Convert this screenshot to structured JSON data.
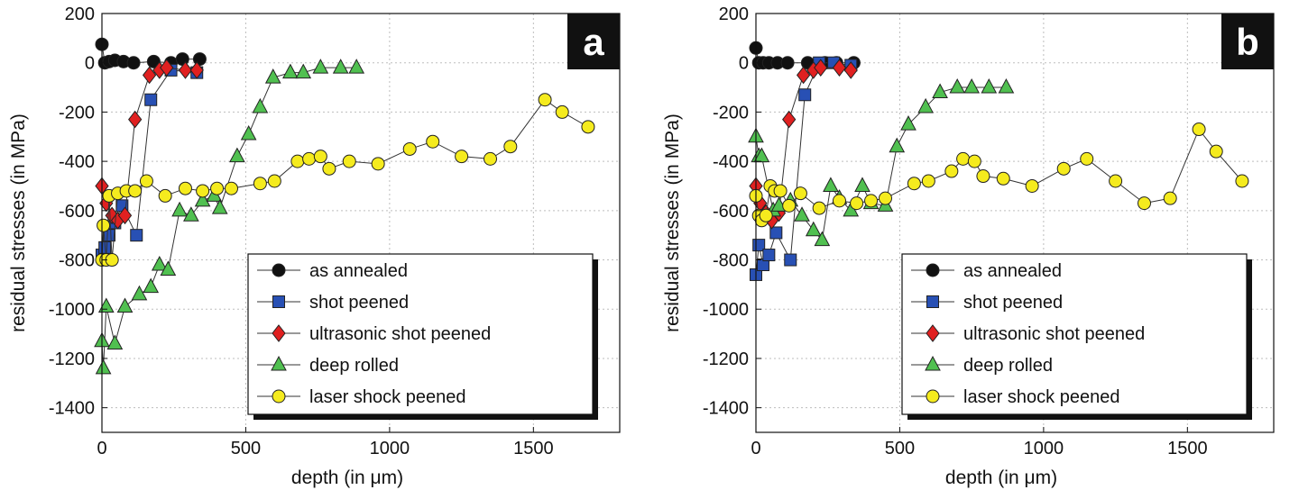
{
  "chart_data": [
    {
      "type": "scatter",
      "panel_label": "a",
      "xlabel": "depth (in μm)",
      "ylabel": "residual stresses (in MPa)",
      "xlim": [
        0,
        1800
      ],
      "ylim": [
        -1500,
        200
      ],
      "xticks": [
        0,
        500,
        1000,
        1500
      ],
      "yticks": [
        200,
        0,
        -200,
        -400,
        -600,
        -800,
        -1000,
        -1200,
        -1400
      ],
      "grid": true,
      "legend_position": "bottom-right",
      "series": [
        {
          "name": "as annealed",
          "marker": "circle",
          "color": "#111111",
          "x": [
            0,
            10,
            25,
            45,
            75,
            110,
            180,
            240,
            280,
            340
          ],
          "y": [
            75,
            0,
            5,
            10,
            5,
            0,
            5,
            0,
            15,
            15
          ]
        },
        {
          "name": "shot peened",
          "marker": "square",
          "color": "#2850b4",
          "x": [
            0,
            10,
            25,
            45,
            70,
            120,
            170,
            240,
            330
          ],
          "y": [
            -780,
            -750,
            -700,
            -650,
            -580,
            -700,
            -150,
            -30,
            -40
          ]
        },
        {
          "name": "ultrasonic shot peened",
          "marker": "diamond",
          "color": "#e02020",
          "x": [
            0,
            15,
            35,
            55,
            80,
            115,
            165,
            200,
            225,
            290,
            330
          ],
          "y": [
            -500,
            -570,
            -620,
            -640,
            -620,
            -230,
            -50,
            -30,
            -20,
            -30,
            -30
          ]
        },
        {
          "name": "deep rolled",
          "marker": "triangle",
          "color": "#50c050",
          "x": [
            0,
            5,
            15,
            45,
            80,
            130,
            170,
            200,
            230,
            270,
            310,
            350,
            390,
            410,
            470,
            510,
            550,
            595,
            655,
            700,
            760,
            830,
            885
          ],
          "y": [
            -1130,
            -1240,
            -990,
            -1140,
            -990,
            -940,
            -910,
            -820,
            -840,
            -600,
            -620,
            -560,
            -540,
            -590,
            -380,
            -290,
            -180,
            -60,
            -40,
            -40,
            -20,
            -20,
            -20
          ]
        },
        {
          "name": "laser shock peened",
          "marker": "circle",
          "color": "#f5eb1e",
          "x": [
            0,
            5,
            15,
            25,
            35,
            55,
            85,
            115,
            155,
            220,
            290,
            350,
            400,
            450,
            550,
            600,
            680,
            720,
            760,
            790,
            860,
            960,
            1070,
            1150,
            1250,
            1350,
            1420,
            1540,
            1600,
            1690
          ],
          "y": [
            -800,
            -660,
            -800,
            -540,
            -800,
            -530,
            -520,
            -520,
            -480,
            -540,
            -510,
            -520,
            -510,
            -510,
            -490,
            -480,
            -400,
            -390,
            -380,
            -430,
            -400,
            -410,
            -350,
            -320,
            -380,
            -390,
            -340,
            -150,
            -200,
            -260
          ]
        }
      ]
    },
    {
      "type": "scatter",
      "panel_label": "b",
      "xlabel": "depth (in μm)",
      "ylabel": "residual stresses (in MPa)",
      "xlim": [
        0,
        1800
      ],
      "ylim": [
        -1500,
        200
      ],
      "xticks": [
        0,
        500,
        1000,
        1500
      ],
      "yticks": [
        200,
        0,
        -200,
        -400,
        -600,
        -800,
        -1000,
        -1200,
        -1400
      ],
      "grid": true,
      "legend_position": "bottom-right",
      "series": [
        {
          "name": "as annealed",
          "marker": "circle",
          "color": "#111111",
          "x": [
            0,
            10,
            25,
            45,
            75,
            110,
            180,
            240,
            280,
            340
          ],
          "y": [
            60,
            0,
            0,
            0,
            0,
            0,
            0,
            0,
            0,
            0
          ]
        },
        {
          "name": "shot peened",
          "marker": "square",
          "color": "#2850b4",
          "x": [
            0,
            10,
            25,
            45,
            70,
            120,
            170,
            220,
            270,
            330
          ],
          "y": [
            -860,
            -740,
            -820,
            -780,
            -690,
            -800,
            -130,
            0,
            0,
            -10
          ]
        },
        {
          "name": "ultrasonic shot peened",
          "marker": "diamond",
          "color": "#e02020",
          "x": [
            0,
            15,
            35,
            55,
            80,
            115,
            165,
            200,
            225,
            290,
            330
          ],
          "y": [
            -500,
            -570,
            -610,
            -640,
            -610,
            -230,
            -50,
            -30,
            -20,
            -20,
            -30
          ]
        },
        {
          "name": "deep rolled",
          "marker": "triangle",
          "color": "#50c050",
          "x": [
            0,
            10,
            20,
            60,
            80,
            120,
            160,
            200,
            230,
            260,
            290,
            330,
            370,
            400,
            450,
            490,
            530,
            590,
            640,
            700,
            750,
            810,
            870
          ],
          "y": [
            -300,
            -380,
            -380,
            -600,
            -580,
            -560,
            -620,
            -680,
            -720,
            -500,
            -550,
            -600,
            -500,
            -570,
            -580,
            -340,
            -250,
            -180,
            -120,
            -100,
            -100,
            -100,
            -100
          ]
        },
        {
          "name": "laser shock peened",
          "marker": "circle",
          "color": "#f5eb1e",
          "x": [
            0,
            10,
            20,
            35,
            50,
            65,
            85,
            115,
            155,
            220,
            290,
            350,
            400,
            450,
            550,
            600,
            680,
            720,
            760,
            790,
            860,
            960,
            1070,
            1150,
            1250,
            1350,
            1440,
            1540,
            1600,
            1690
          ],
          "y": [
            -540,
            -620,
            -640,
            -620,
            -500,
            -520,
            -520,
            -580,
            -530,
            -590,
            -560,
            -570,
            -560,
            -550,
            -490,
            -480,
            -440,
            -390,
            -400,
            -460,
            -470,
            -500,
            -430,
            -390,
            -480,
            -570,
            -550,
            -270,
            -360,
            -480
          ]
        }
      ]
    }
  ]
}
